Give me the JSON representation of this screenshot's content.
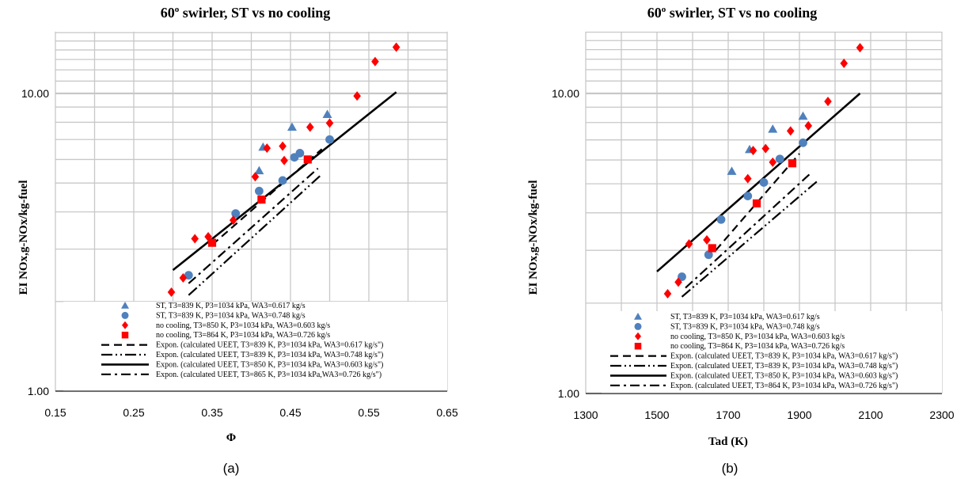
{
  "colors": {
    "grid": "#c8c8c8",
    "triangle": "#4f81bd",
    "circle": "#4f81bd",
    "diamond": "#ff0000",
    "square": "#ff0000",
    "fit": "#000000"
  },
  "chart_data": [
    {
      "type": "scatter",
      "title": "60",
      "title_sup": "o",
      "title_rest": " swirler, ST vs no cooling",
      "xlabel": "Φ",
      "ylabel": "EI NOx,g-NOx/kg-fuel",
      "caption": "(a)",
      "xlim": [
        0.15,
        0.65
      ],
      "ylim": [
        1,
        16
      ],
      "yscale": "log",
      "grid": true,
      "legend_position": "bottom-right",
      "xticks": [
        "0.15",
        "0.25",
        "0.35",
        "0.45",
        "0.55",
        "0.65"
      ],
      "yticks": [
        "1.00",
        "10.00"
      ],
      "series": [
        {
          "name": "ST, T3=839 K, P3=1034 kPa, WA3=0.617 kg/s",
          "marker": "triangle",
          "x": [
            0.41,
            0.415,
            0.452,
            0.497
          ],
          "y": [
            5.5,
            6.6,
            7.7,
            8.5
          ]
        },
        {
          "name": "ST, T3=839 K, P3=1034 kPa, WA3=0.748 kg/s",
          "marker": "circle",
          "x": [
            0.32,
            0.38,
            0.41,
            0.44,
            0.455,
            0.462,
            0.5
          ],
          "y": [
            2.45,
            3.95,
            4.7,
            5.1,
            6.1,
            6.3,
            7.0
          ]
        },
        {
          "name": "no cooling, T3=850 K, P3=1034 kPa, WA3=0.603 kg/s",
          "marker": "diamond",
          "x": [
            0.298,
            0.313,
            0.328,
            0.345,
            0.377,
            0.405,
            0.42,
            0.44,
            0.442,
            0.475,
            0.5,
            0.535,
            0.558,
            0.585
          ],
          "y": [
            2.15,
            2.4,
            3.25,
            3.3,
            3.75,
            5.25,
            6.55,
            6.65,
            5.95,
            7.7,
            7.95,
            9.8,
            12.8,
            14.3
          ]
        },
        {
          "name": " no cooling, T3=864 K, P3=1034 kPa, WA3=0.726 kg/s",
          "marker": "square",
          "x": [
            0.35,
            0.413,
            0.472
          ],
          "y": [
            3.15,
            4.4,
            6.0
          ]
        }
      ],
      "fits": [
        {
          "name": "Expon. (calculated UEET, T3=839 K, P3=1034 kPa, WA3=0.617 kg/s\")",
          "dash": "10,6",
          "x": [
            0.35,
            0.49
          ],
          "y": [
            3.1,
            6.5
          ]
        },
        {
          "name": "Expon. (calculated UEET, T3=839 K, P3=1034 kPa, WA3=0.748 kg/s\")",
          "dash": "14,4,2,4,2,4",
          "x": [
            0.32,
            0.49
          ],
          "y": [
            2.1,
            5.35
          ]
        },
        {
          "name": "Expon. (calculated UEET, T3=850 K, P3=1034 kPa, WA3=0.603 kg/s\")",
          "dash": "",
          "x": [
            0.3,
            0.585
          ],
          "y": [
            2.55,
            10.1
          ]
        },
        {
          "name": "Expon. (calculated UEET, T3=865 K, P3=1034 kPa,WA3=0.726 kg/s\")",
          "dash": "12,5,3,5",
          "x": [
            0.32,
            0.485
          ],
          "y": [
            2.3,
            5.6
          ]
        }
      ]
    },
    {
      "type": "scatter",
      "title": "60",
      "title_sup": "o",
      "title_rest": " swirler, ST vs no cooling",
      "xlabel": "Tad (K)",
      "ylabel": "EI NOx,g-NOx/kg-fuel",
      "caption": "(b)",
      "xlim": [
        1300,
        2300
      ],
      "ylim": [
        1,
        16
      ],
      "yscale": "log",
      "grid": true,
      "legend_position": "bottom-right",
      "xticks": [
        "1300",
        "1500",
        "1700",
        "1900",
        "2100",
        "2300"
      ],
      "yticks": [
        "1.00",
        "10.00"
      ],
      "series": [
        {
          "name": "ST, T3=839 K, P3=1034 kPa, WA3=0.617 kg/s",
          "marker": "triangle",
          "x": [
            1710,
            1760,
            1825,
            1910
          ],
          "y": [
            5.5,
            6.5,
            7.6,
            8.4
          ]
        },
        {
          "name": "ST, T3=839 K, P3=1034 kPa, WA3=0.748 kg/s",
          "marker": "circle",
          "x": [
            1570,
            1645,
            1680,
            1755,
            1800,
            1845,
            1910
          ],
          "y": [
            2.45,
            2.9,
            3.8,
            4.55,
            5.05,
            6.05,
            6.85
          ]
        },
        {
          "name": "no cooling, T3=850 K, P3=1034 kPa, WA3=0.603 kg/s",
          "marker": "diamond",
          "x": [
            1530,
            1560,
            1590,
            1640,
            1755,
            1770,
            1805,
            1825,
            1875,
            1925,
            1980,
            2025,
            2070
          ],
          "y": [
            2.15,
            2.35,
            3.15,
            3.25,
            5.2,
            6.45,
            6.55,
            5.9,
            7.5,
            7.8,
            9.4,
            12.6,
            14.2
          ]
        },
        {
          "name": " no cooling, T3=864 K, P3=1034 kPa, WA3=0.726 kg/s",
          "marker": "square",
          "x": [
            1655,
            1780,
            1880
          ],
          "y": [
            3.05,
            4.3,
            5.85
          ]
        }
      ],
      "fits": [
        {
          "name": "Expon. (calculated UEET, T3=839 K, P3=1034 kPa, WA3=0.617 kg/s\")",
          "dash": "10,6",
          "x": [
            1665,
            1900
          ],
          "y": [
            3.0,
            6.3
          ]
        },
        {
          "name": "Expon. (calculated UEET, T3=839 K, P3=1034 kPa,  WA3=0.748 kg/s\")",
          "dash": "14,4,2,4,2,4",
          "x": [
            1570,
            1950
          ],
          "y": [
            2.1,
            5.1
          ]
        },
        {
          "name": "Expon. (calculated UEET, T3=850 K, P3=1034 kPa, WA3=0.603 kg/s\")",
          "dash": "",
          "x": [
            1500,
            2070
          ],
          "y": [
            2.55,
            10.0
          ]
        },
        {
          "name": "Expon. (calculated UEET, T3=864 K, P3=1034 kPa,  WA3=0.726 kg/s\")",
          "dash": "12,5,3,5",
          "x": [
            1580,
            1930
          ],
          "y": [
            2.25,
            5.4
          ]
        }
      ]
    }
  ]
}
